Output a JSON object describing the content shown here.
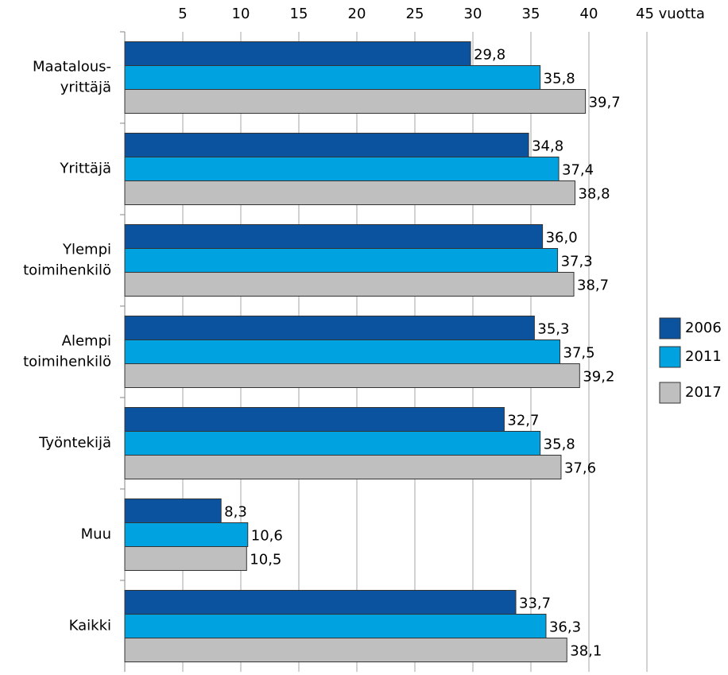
{
  "chart_data": {
    "type": "bar",
    "orientation": "horizontal",
    "categories": [
      "Maatalous-\nyrittäjä",
      "Yrittäjä",
      "Ylempi\ntoimihenkilö",
      "Alempi\ntoimihenkilö",
      "Työntekijä",
      "Muu",
      "Kaikki"
    ],
    "series": [
      {
        "name": "2006",
        "color": "#0b539e",
        "values": [
          29.8,
          34.8,
          36.0,
          35.3,
          32.7,
          8.3,
          33.7
        ],
        "value_labels": [
          "29,8",
          "34,8",
          "36,0",
          "35,3",
          "32,7",
          "8,3",
          "33,7"
        ]
      },
      {
        "name": "2011",
        "color": "#00a3e0",
        "values": [
          35.8,
          37.4,
          37.3,
          37.5,
          35.8,
          10.6,
          36.3
        ],
        "value_labels": [
          "35,8",
          "37,4",
          "37,3",
          "37,5",
          "35,8",
          "10,6",
          "36,3"
        ]
      },
      {
        "name": "2017",
        "color": "#bfbfbf",
        "values": [
          39.7,
          38.8,
          38.7,
          39.2,
          37.6,
          10.5,
          38.1
        ],
        "value_labels": [
          "39,7",
          "38,8",
          "38,7",
          "39,2",
          "37,6",
          "10,5",
          "38,1"
        ]
      }
    ],
    "xlim": [
      0,
      45
    ],
    "xticks": [
      5,
      10,
      15,
      20,
      25,
      30,
      35,
      40,
      {
        "value": 45,
        "label": "45 vuotta"
      }
    ],
    "grid": true,
    "legend": "right"
  }
}
